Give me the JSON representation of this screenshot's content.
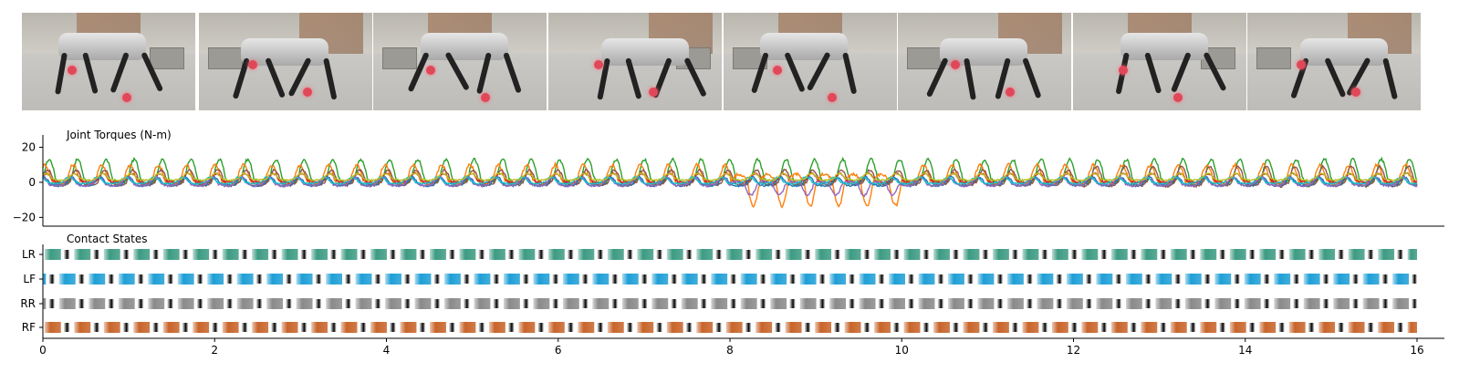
{
  "photos": [
    "frame-1",
    "frame-2",
    "frame-3",
    "frame-4",
    "frame-5",
    "frame-6",
    "frame-7",
    "frame-8"
  ],
  "chart_data": [
    {
      "type": "line",
      "title": "Joint Torques (N-m)",
      "xlim": [
        0,
        16
      ],
      "ylim": [
        -25,
        27
      ],
      "yticks": [
        "20",
        "0",
        "−20"
      ],
      "grid": false,
      "series": [
        {
          "color": "#2ca02c",
          "amplitude": 11,
          "offset": 2,
          "period": 0.33,
          "phase": 0.0,
          "noise": 1.5
        },
        {
          "color": "#ff7f0e",
          "amplitude": 9,
          "offset": 1,
          "period": 0.33,
          "phase": 0.15,
          "noise": 1.8
        },
        {
          "color": "#8c564b",
          "amplitude": 7,
          "offset": 0,
          "period": 0.33,
          "phase": 0.05,
          "noise": 1.2
        },
        {
          "color": "#d62728",
          "amplitude": 4,
          "offset": 1,
          "period": 0.33,
          "phase": 0.1,
          "noise": 1.0
        },
        {
          "color": "#1f77b4",
          "amplitude": 4,
          "offset": -1,
          "period": 0.33,
          "phase": 0.2,
          "noise": 1.0
        },
        {
          "color": "#9467bd",
          "amplitude": 4,
          "offset": -1,
          "period": 0.33,
          "phase": 0.25,
          "noise": 1.2
        },
        {
          "color": "#17becf",
          "amplitude": 3,
          "offset": 0,
          "period": 0.33,
          "phase": 0.3,
          "noise": 0.8
        },
        {
          "color": "#bcbd22",
          "amplitude": 3,
          "offset": 2,
          "period": 0.33,
          "phase": 0.12,
          "noise": 0.8
        }
      ]
    },
    {
      "type": "heatmap",
      "title": "Contact States",
      "xlim": [
        0,
        16
      ],
      "xticks": [
        "0",
        "2",
        "4",
        "6",
        "8",
        "10",
        "12",
        "14",
        "16"
      ],
      "xlabel": "",
      "rows": [
        {
          "label": "LR",
          "color": "#3d9b83",
          "period": 0.345,
          "phase": 0.02
        },
        {
          "label": "LF",
          "color": "#1f9fd6",
          "period": 0.345,
          "phase": 0.19
        },
        {
          "label": "RR",
          "color": "#8a8a8a",
          "period": 0.345,
          "phase": 0.19
        },
        {
          "label": "RF",
          "color": "#c8642a",
          "period": 0.345,
          "phase": 0.02
        }
      ]
    }
  ]
}
